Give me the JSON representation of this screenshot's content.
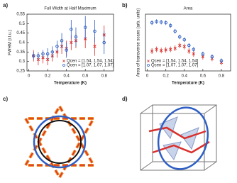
{
  "chart_data": [
    {
      "type": "scatter",
      "panel_label": "a)",
      "title": "Full Width at Half Maximum",
      "xlabel": "Temperature (K)",
      "ylabel": "FWHM (r.l.u.)",
      "xlim": [
        -0.02,
        0.9
      ],
      "ylim": [
        0.25,
        0.55
      ],
      "xticks": [
        0,
        0.2,
        0.4,
        0.6,
        0.8
      ],
      "yticks": [
        0.25,
        0.3,
        0.35,
        0.4,
        0.45,
        0.5,
        0.55
      ],
      "legend": "lower right",
      "series": [
        {
          "name": "Qcen = [1.54, 1.54, 1.54]",
          "color": "#d9302c",
          "marker": "x",
          "x": [
            0.05,
            0.1,
            0.15,
            0.2,
            0.25,
            0.3,
            0.35,
            0.4,
            0.45,
            0.5,
            0.6,
            0.7,
            0.8
          ],
          "values": [
            0.33,
            0.31,
            0.32,
            0.31,
            0.33,
            0.35,
            0.38,
            0.37,
            0.4,
            0.41,
            0.42,
            0.38,
            0.44
          ],
          "errors": [
            0.03,
            0.03,
            0.03,
            0.03,
            0.03,
            0.03,
            0.04,
            0.04,
            0.04,
            0.04,
            0.05,
            0.05,
            0.05
          ]
        },
        {
          "name": "Qcen = [1.07, 1.07, 1.07]",
          "color": "#2f5fc4",
          "marker": "o",
          "x": [
            0.05,
            0.1,
            0.15,
            0.2,
            0.25,
            0.3,
            0.35,
            0.4,
            0.45,
            0.5,
            0.6,
            0.7,
            0.8
          ],
          "values": [
            0.33,
            0.33,
            0.34,
            0.34,
            0.35,
            0.38,
            0.41,
            0.36,
            0.47,
            0.43,
            0.48,
            0.46,
            0.4
          ],
          "errors": [
            0.02,
            0.02,
            0.02,
            0.03,
            0.03,
            0.03,
            0.04,
            0.04,
            0.05,
            0.05,
            0.06,
            0.06,
            0.06
          ]
        }
      ]
    },
    {
      "type": "scatter",
      "panel_label": "b)",
      "title": "Area",
      "xlabel": "Temperature (K)",
      "ylabel": "Area of transverse scans (arb. units)",
      "xlim": [
        -0.02,
        0.9
      ],
      "ylim": [
        0,
        1
      ],
      "xticks": [
        0,
        0.2,
        0.4,
        0.6,
        0.8
      ],
      "legend": "lower left",
      "series": [
        {
          "name": "Qcen = [1.54, 1.54, 1.54]",
          "color": "#d9302c",
          "marker": "x",
          "x": [
            0.05,
            0.1,
            0.15,
            0.2,
            0.25,
            0.3,
            0.35,
            0.4,
            0.45,
            0.5,
            0.6,
            0.7,
            0.8
          ],
          "values": [
            0.35,
            0.38,
            0.36,
            0.37,
            0.38,
            0.4,
            0.45,
            0.43,
            0.35,
            0.3,
            0.25,
            0.22,
            0.15
          ],
          "errors": [
            0.05,
            0.05,
            0.05,
            0.05,
            0.05,
            0.05,
            0.05,
            0.05,
            0.05,
            0.05,
            0.05,
            0.05,
            0.05
          ]
        },
        {
          "name": "Qcen = [1.07, 1.07, 1.07]",
          "color": "#2f5fc4",
          "marker": "o",
          "x": [
            0.05,
            0.1,
            0.15,
            0.2,
            0.25,
            0.3,
            0.35,
            0.4,
            0.45,
            0.5,
            0.6,
            0.7,
            0.8
          ],
          "values": [
            0.85,
            0.87,
            0.86,
            0.85,
            0.8,
            0.7,
            0.6,
            0.55,
            0.45,
            0.38,
            0.3,
            0.25,
            0.18
          ],
          "errors": [
            0.04,
            0.04,
            0.04,
            0.04,
            0.04,
            0.04,
            0.04,
            0.04,
            0.04,
            0.04,
            0.04,
            0.04,
            0.04
          ]
        }
      ]
    }
  ],
  "diagrams": [
    {
      "label": "c)"
    },
    {
      "label": "d)"
    }
  ]
}
